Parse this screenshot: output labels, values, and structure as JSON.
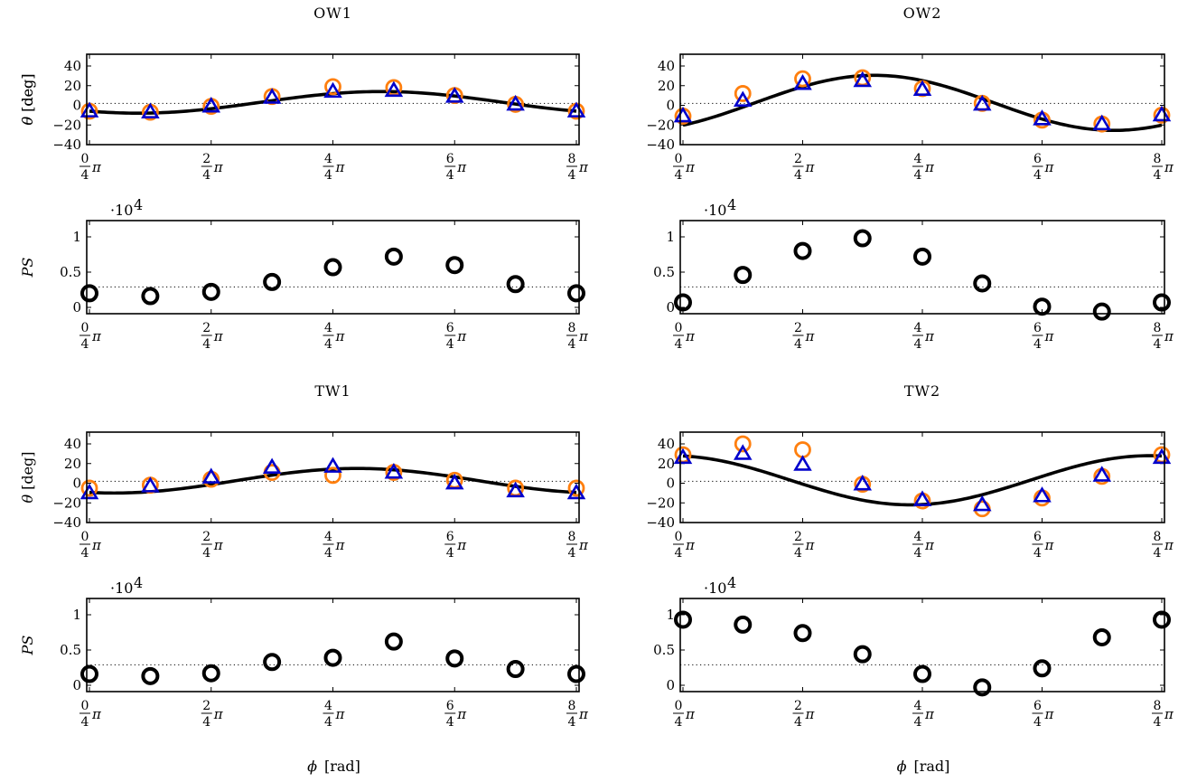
{
  "colors": {
    "fit": "#000000",
    "circle": "#ff7f0e",
    "triangle": "#0000cc",
    "ps": "#000000"
  },
  "common": {
    "pi_symbol": "π",
    "x_tick_numerators": [
      "0",
      "2",
      "4",
      "6",
      "8"
    ],
    "x_tick_denominator": "4",
    "theta_ticks": [
      "40",
      "20",
      "0",
      "−20",
      "−40"
    ],
    "ps_ticks": [
      "1",
      "0.5",
      "0"
    ],
    "theta_label_symbol": "θ",
    "theta_label_unit": "[deg]",
    "ps_label": "PS",
    "ps_exponent": "·10",
    "ps_exponent_power": "4",
    "x_axis_label_symbol": "ϕ",
    "x_axis_label_unit": "[rad]"
  },
  "chart_data": [
    {
      "type": "scatter",
      "title": "OW1",
      "xlabel": "",
      "ylabel": "θ [deg]",
      "xlim": [
        0,
        8
      ],
      "x_unit": "π/4",
      "ylim": [
        -40,
        45
      ],
      "reference_line": 2,
      "fit_curve": {
        "offset": 3,
        "amplitude": 11,
        "phase_peak_x": 4.8
      },
      "series": [
        {
          "marker": "circle",
          "x": [
            0,
            1,
            2,
            3,
            4,
            5,
            6,
            7,
            8
          ],
          "values": [
            -6,
            -7,
            -1,
            9,
            19,
            18,
            10,
            1,
            -6
          ]
        },
        {
          "marker": "triangle",
          "x": [
            0,
            1,
            2,
            3,
            4,
            5,
            6,
            7,
            8
          ],
          "values": [
            -6,
            -7,
            -1,
            8,
            14,
            15,
            9,
            1,
            -6
          ]
        }
      ]
    },
    {
      "type": "scatter",
      "title": "",
      "xlabel": "",
      "ylabel": "PS",
      "xlim": [
        0,
        8
      ],
      "x_unit": "π/4",
      "ylim": [
        -0.05,
        1.2
      ],
      "scale": "·10^4",
      "reference_line": 0.29,
      "series": [
        {
          "marker": "circle",
          "x": [
            0,
            1,
            2,
            3,
            4,
            5,
            6,
            7,
            8
          ],
          "values": [
            0.2,
            0.16,
            0.22,
            0.36,
            0.57,
            0.72,
            0.6,
            0.33,
            0.2
          ]
        }
      ]
    },
    {
      "type": "scatter",
      "title": "OW2",
      "xlabel": "",
      "ylabel": "θ [deg]",
      "xlim": [
        0,
        8
      ],
      "x_unit": "π/4",
      "ylim": [
        -40,
        45
      ],
      "reference_line": 2,
      "fit_curve": {
        "offset": 2.5,
        "amplitude": 28,
        "phase_peak_x": 3.2
      },
      "series": [
        {
          "marker": "circle",
          "x": [
            0,
            1,
            2,
            3,
            4,
            5,
            6,
            7,
            8
          ],
          "values": [
            -11,
            12,
            27,
            28,
            17,
            2,
            -15,
            -19,
            -10
          ]
        },
        {
          "marker": "triangle",
          "x": [
            0,
            1,
            2,
            3,
            4,
            5,
            6,
            7,
            8
          ],
          "values": [
            -11,
            5,
            22,
            25,
            16,
            1,
            -14,
            -19,
            -10
          ]
        }
      ]
    },
    {
      "type": "scatter",
      "title": "",
      "xlabel": "",
      "ylabel": "",
      "xlim": [
        0,
        8
      ],
      "x_unit": "π/4",
      "ylim": [
        -0.05,
        1.2
      ],
      "scale": "·10^4",
      "reference_line": 0.29,
      "series": [
        {
          "marker": "circle",
          "x": [
            0,
            1,
            2,
            3,
            4,
            5,
            6,
            7,
            8
          ],
          "values": [
            0.07,
            0.46,
            0.8,
            0.98,
            0.72,
            0.34,
            0.01,
            -0.06,
            0.07
          ]
        }
      ]
    },
    {
      "type": "scatter",
      "title": "TW1",
      "xlabel": "",
      "ylabel": "θ [deg]",
      "xlim": [
        0,
        8
      ],
      "x_unit": "π/4",
      "ylim": [
        -40,
        45
      ],
      "reference_line": 2,
      "fit_curve": {
        "offset": 2.5,
        "amplitude": 12.5,
        "phase_peak_x": 4.4
      },
      "series": [
        {
          "marker": "circle",
          "x": [
            0,
            1,
            2,
            3,
            4,
            5,
            6,
            7,
            8
          ],
          "values": [
            -5,
            -2,
            4,
            11,
            8,
            11,
            3,
            -5,
            -5
          ]
        },
        {
          "marker": "triangle",
          "x": [
            0,
            1,
            2,
            3,
            4,
            5,
            6,
            7,
            8
          ],
          "values": [
            -10,
            -3,
            6,
            16,
            17,
            11,
            0,
            -8,
            -10
          ]
        }
      ]
    },
    {
      "type": "scatter",
      "title": "",
      "xlabel": "ϕ [rad]",
      "ylabel": "PS",
      "xlim": [
        0,
        8
      ],
      "x_unit": "π/4",
      "ylim": [
        -0.05,
        1.2
      ],
      "scale": "·10^4",
      "reference_line": 0.29,
      "series": [
        {
          "marker": "circle",
          "x": [
            0,
            1,
            2,
            3,
            4,
            5,
            6,
            7,
            8
          ],
          "values": [
            0.16,
            0.13,
            0.17,
            0.33,
            0.39,
            0.62,
            0.38,
            0.23,
            0.16
          ]
        }
      ]
    },
    {
      "type": "scatter",
      "title": "TW2",
      "xlabel": "",
      "ylabel": "",
      "xlim": [
        0,
        8
      ],
      "x_unit": "π/4",
      "ylim": [
        -40,
        45
      ],
      "reference_line": 2,
      "fit_curve": {
        "offset": 3,
        "amplitude": -25,
        "phase_peak_x": 3.8
      },
      "series": [
        {
          "marker": "circle",
          "x": [
            0,
            1,
            2,
            3,
            4,
            5,
            6,
            7,
            8
          ],
          "values": [
            29,
            40,
            34,
            -1,
            -18,
            -26,
            -15,
            7,
            29
          ]
        },
        {
          "marker": "triangle",
          "x": [
            0,
            1,
            2,
            3,
            4,
            5,
            6,
            7,
            8
          ],
          "values": [
            26,
            30,
            19,
            -1,
            -17,
            -22,
            -13,
            8,
            26
          ]
        }
      ]
    },
    {
      "type": "scatter",
      "title": "",
      "xlabel": "ϕ [rad]",
      "ylabel": "",
      "xlim": [
        0,
        8
      ],
      "x_unit": "π/4",
      "ylim": [
        -0.05,
        1.2
      ],
      "scale": "·10^4",
      "reference_line": 0.29,
      "series": [
        {
          "marker": "circle",
          "x": [
            0,
            1,
            2,
            3,
            4,
            5,
            6,
            7,
            8
          ],
          "values": [
            0.93,
            0.86,
            0.74,
            0.44,
            0.16,
            -0.03,
            0.24,
            0.68,
            0.93
          ]
        }
      ]
    }
  ]
}
